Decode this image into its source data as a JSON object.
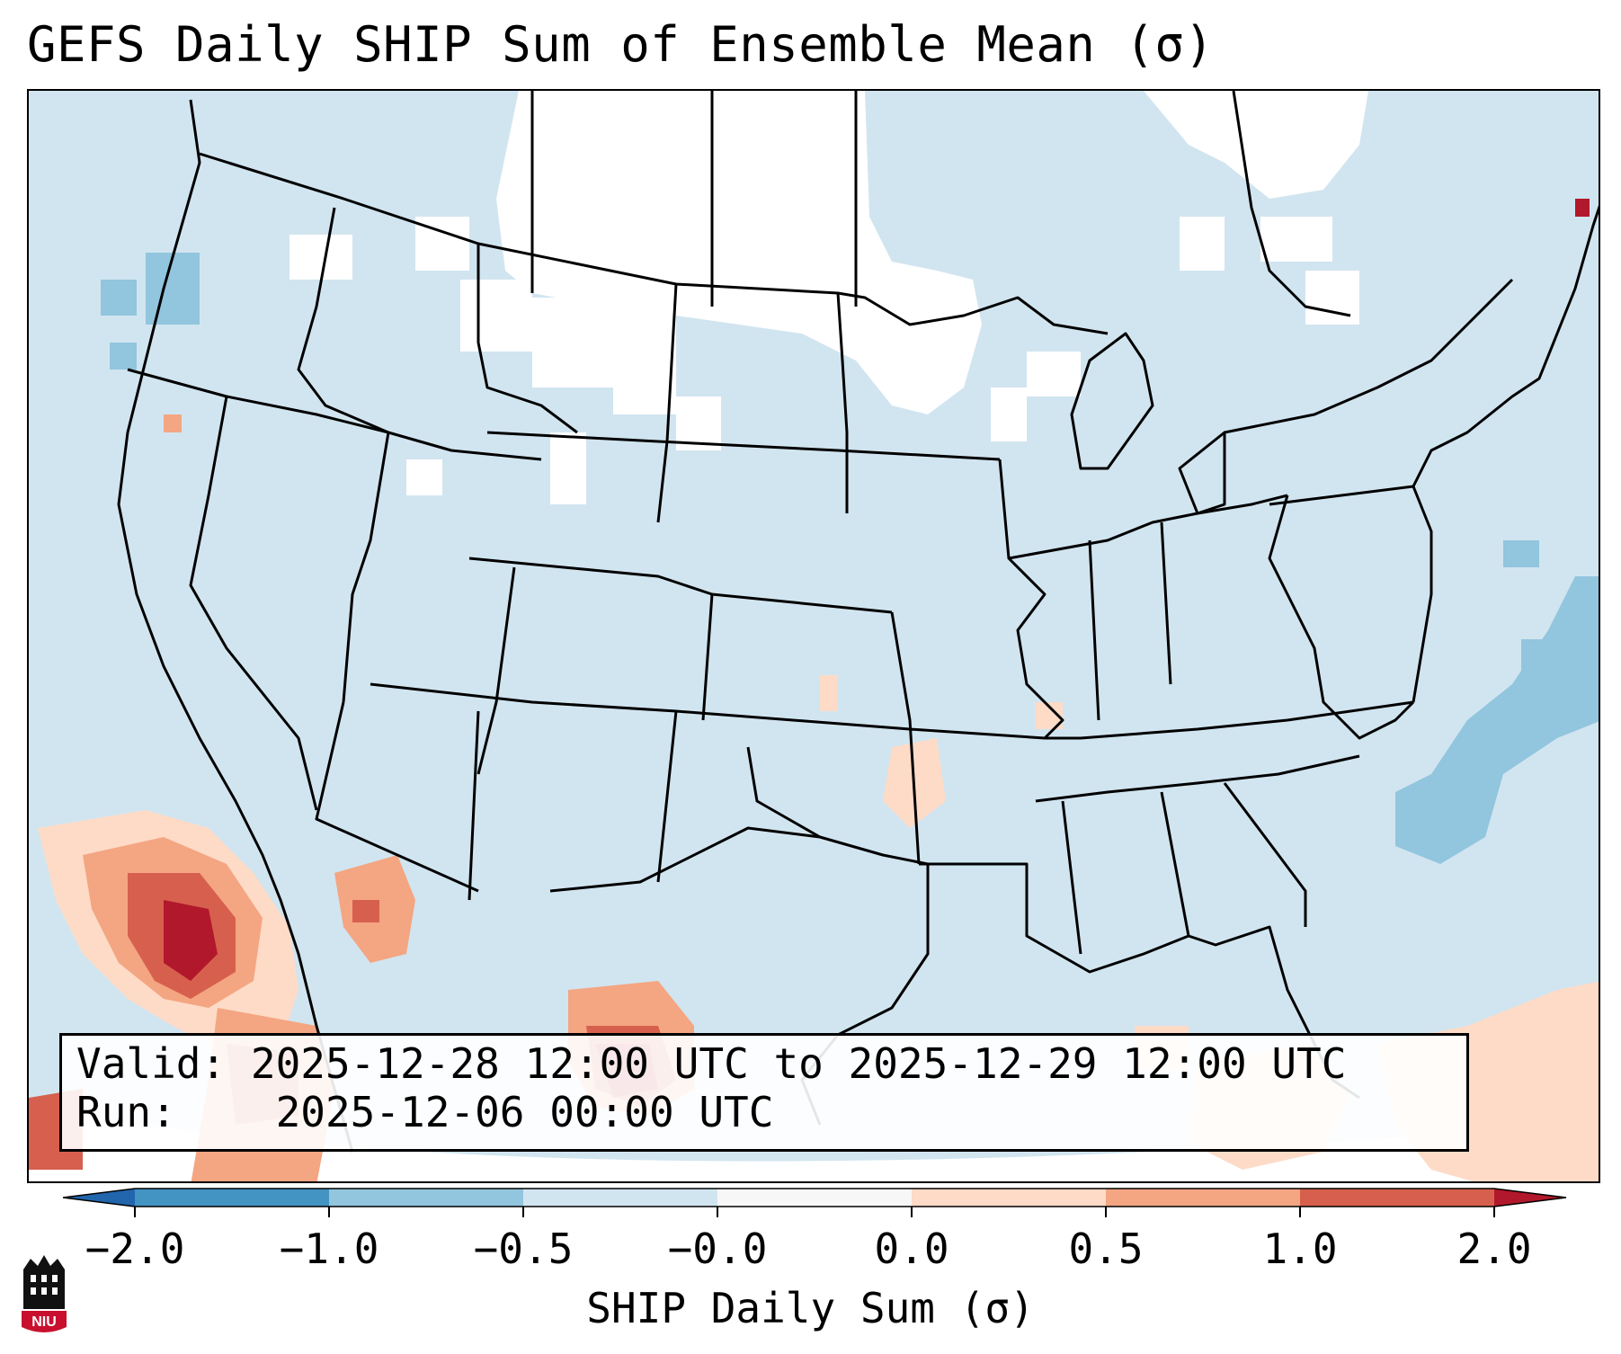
{
  "title": "GEFS Daily SHIP Sum of Ensemble Mean (σ)",
  "info": {
    "valid_label": "Valid:",
    "valid_value": "2025-12-28 12:00 UTC to 2025-12-29 12:00 UTC",
    "run_label": "Run:",
    "run_value": "2025-12-06 00:00 UTC"
  },
  "colorbar": {
    "label": "SHIP Daily Sum (σ)",
    "ticks": [
      "−2.0",
      "−1.0",
      "−0.5",
      "−0.0",
      "0.0",
      "0.5",
      "1.0",
      "2.0"
    ],
    "colors": [
      "#4393c3",
      "#92c5de",
      "#d1e5f0",
      "#f7f7f7",
      "#fddbc7",
      "#f4a582",
      "#d6604d"
    ],
    "under_color": "#2166ac",
    "over_color": "#b2182b"
  },
  "logo": {
    "text": "NIU",
    "color": "#c8102e"
  }
}
